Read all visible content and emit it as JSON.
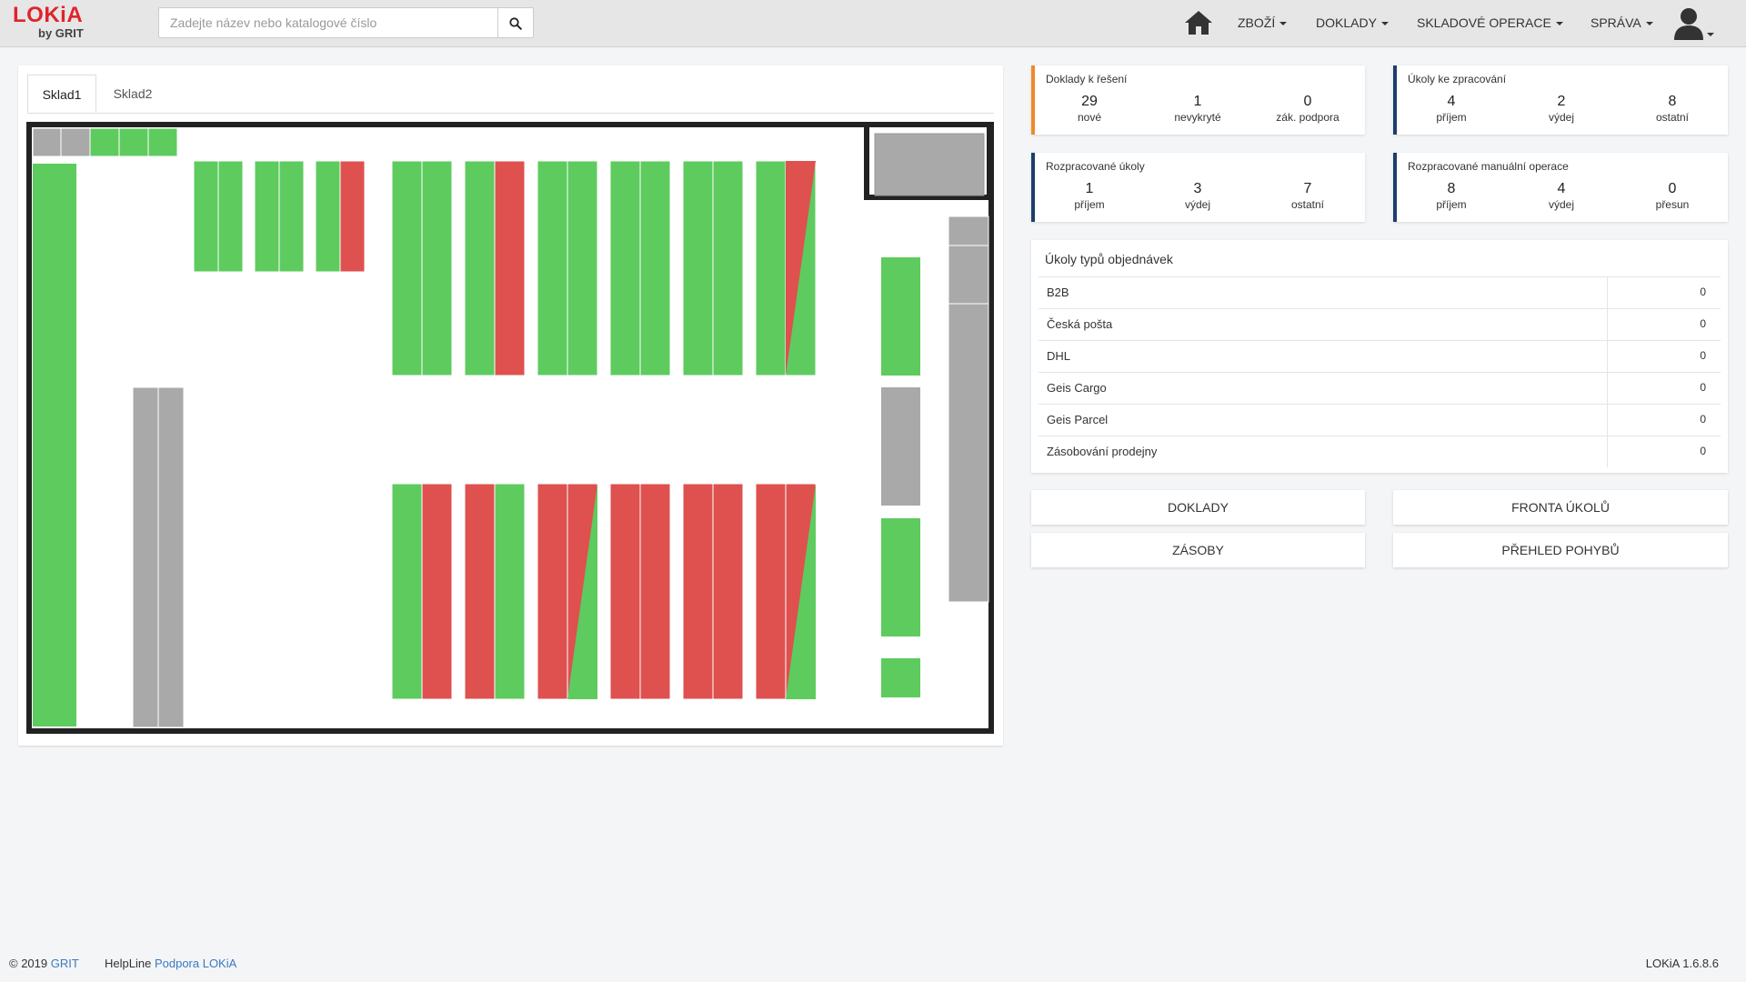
{
  "app": {
    "logo_main": "LOKiA",
    "logo_sub": "by GRIT"
  },
  "search": {
    "placeholder": "Zadejte název nebo katalogové číslo",
    "value": "",
    "icon": "search-icon"
  },
  "nav": {
    "home_icon": "home-icon",
    "items": [
      {
        "label": "ZBOŽÍ"
      },
      {
        "label": "DOKLADY"
      },
      {
        "label": "SKLADOVÉ OPERACE"
      },
      {
        "label": "SPRÁVA"
      }
    ],
    "user_icon": "user-icon"
  },
  "map": {
    "tabs": [
      {
        "label": "Sklad1",
        "active": true
      },
      {
        "label": "Sklad2",
        "active": false
      }
    ],
    "colors": {
      "full": "#5ecb5e",
      "empty": "#de514f",
      "inactive": "#a9a9a9",
      "wall": "#222222"
    }
  },
  "cards": {
    "doklady": {
      "title": "Doklady k řešení",
      "stats": [
        {
          "value": "29",
          "label": "nové"
        },
        {
          "value": "1",
          "label": "nevykryté"
        },
        {
          "value": "0",
          "label": "zák. podpora"
        }
      ]
    },
    "ukoly": {
      "title": "Úkoly ke zpracování",
      "stats": [
        {
          "value": "4",
          "label": "příjem"
        },
        {
          "value": "2",
          "label": "výdej"
        },
        {
          "value": "8",
          "label": "ostatní"
        }
      ]
    },
    "rozpracovane": {
      "title": "Rozpracované úkoly",
      "stats": [
        {
          "value": "1",
          "label": "příjem"
        },
        {
          "value": "3",
          "label": "výdej"
        },
        {
          "value": "7",
          "label": "ostatní"
        }
      ]
    },
    "manualni": {
      "title": "Rozpracované manuální operace",
      "stats": [
        {
          "value": "8",
          "label": "příjem"
        },
        {
          "value": "4",
          "label": "výdej"
        },
        {
          "value": "0",
          "label": "přesun"
        }
      ]
    }
  },
  "order_types": {
    "title": "Úkoly typů objednávek",
    "rows": [
      {
        "name": "B2B",
        "value": "0"
      },
      {
        "name": "Česká pošta",
        "value": "0"
      },
      {
        "name": "DHL",
        "value": "0"
      },
      {
        "name": "Geis Cargo",
        "value": "0"
      },
      {
        "name": "Geis Parcel",
        "value": "0"
      },
      {
        "name": "Zásobování prodejny",
        "value": "0"
      }
    ]
  },
  "actions": {
    "doklady": "DOKLADY",
    "fronta": "FRONTA ÚKOLŮ",
    "zasoby": "ZÁSOBY",
    "prehled": "PŘEHLED POHYBŮ"
  },
  "footer": {
    "copyright": "© 2019",
    "company_link": "GRIT",
    "helpline": "HelpLine",
    "support_link": "Podpora LOKiA",
    "version": "LOKiA 1.6.8.6"
  }
}
